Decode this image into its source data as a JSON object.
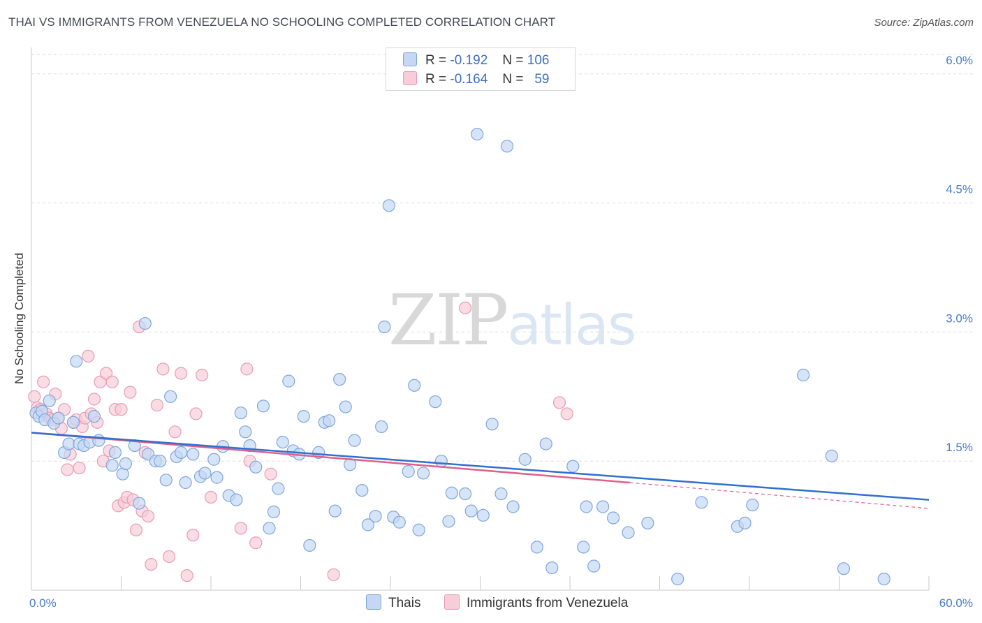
{
  "title": "THAI VS IMMIGRANTS FROM VENEZUELA NO SCHOOLING COMPLETED CORRELATION CHART",
  "source": "Source: ZipAtlas.com",
  "watermark": {
    "zip": "ZIP",
    "atlas": "atlas"
  },
  "colors": {
    "thais_fill": "#c5d8f3",
    "thais_stroke": "#7fa6dd",
    "thais_line": "#2f6fd0",
    "ven_fill": "#f7cdd9",
    "ven_stroke": "#e99bb5",
    "ven_line": "#e0608a",
    "tick_text": "#4a7cc7",
    "grid": "#dddddd"
  },
  "legend": {
    "rows": [
      {
        "r_label": "R =",
        "r_value": "-0.192",
        "n_label": "N =",
        "n_value": "106"
      },
      {
        "r_label": "R =",
        "r_value": "-0.164",
        "n_label": "N =",
        "n_value": "59"
      }
    ]
  },
  "chart_data": {
    "type": "scatter",
    "xlabel": "",
    "ylabel": "No Schooling Completed",
    "xlim": [
      0,
      60
    ],
    "ylim": [
      0,
      6.25
    ],
    "x_tick_labels": [
      {
        "value": 0,
        "label": "0.0%"
      },
      {
        "value": 60,
        "label": "60.0%"
      }
    ],
    "y_ticks": [
      {
        "value": 1.5,
        "label": "1.5%"
      },
      {
        "value": 3.0,
        "label": "3.0%"
      },
      {
        "value": 4.5,
        "label": "4.5%"
      },
      {
        "value": 6.0,
        "label": "6.0%"
      }
    ],
    "grid": "horizontal dashed",
    "legend_position": "top-center",
    "series": [
      {
        "name": "Thais",
        "trend": {
          "x": [
            0,
            60
          ],
          "y": [
            1.83,
            1.05
          ]
        },
        "points": [
          [
            0.3,
            2.06
          ],
          [
            0.5,
            2.02
          ],
          [
            0.7,
            2.08
          ],
          [
            0.9,
            1.98
          ],
          [
            1.2,
            2.2
          ],
          [
            1.5,
            1.94
          ],
          [
            1.8,
            2.0
          ],
          [
            2.2,
            1.6
          ],
          [
            2.5,
            1.7
          ],
          [
            2.8,
            1.95
          ],
          [
            3.0,
            2.66
          ],
          [
            3.2,
            1.7
          ],
          [
            3.5,
            1.68
          ],
          [
            3.9,
            1.72
          ],
          [
            4.2,
            2.02
          ],
          [
            4.5,
            1.74
          ],
          [
            5.4,
            1.45
          ],
          [
            5.6,
            1.6
          ],
          [
            6.1,
            1.35
          ],
          [
            6.3,
            1.47
          ],
          [
            6.9,
            1.68
          ],
          [
            7.2,
            1.01
          ],
          [
            7.6,
            3.1
          ],
          [
            7.8,
            1.58
          ],
          [
            8.3,
            1.5
          ],
          [
            8.6,
            1.5
          ],
          [
            9.0,
            1.28
          ],
          [
            9.3,
            2.25
          ],
          [
            9.7,
            1.55
          ],
          [
            10.0,
            1.6
          ],
          [
            10.3,
            1.25
          ],
          [
            10.8,
            1.58
          ],
          [
            11.3,
            1.32
          ],
          [
            11.6,
            1.36
          ],
          [
            12.2,
            1.52
          ],
          [
            12.4,
            1.31
          ],
          [
            12.8,
            1.67
          ],
          [
            13.2,
            1.1
          ],
          [
            13.7,
            1.05
          ],
          [
            14.0,
            2.06
          ],
          [
            14.3,
            1.84
          ],
          [
            14.6,
            1.68
          ],
          [
            15.0,
            1.43
          ],
          [
            15.5,
            2.14
          ],
          [
            15.9,
            0.72
          ],
          [
            16.2,
            0.91
          ],
          [
            16.5,
            1.18
          ],
          [
            16.8,
            1.72
          ],
          [
            17.2,
            2.43
          ],
          [
            17.5,
            1.62
          ],
          [
            17.9,
            1.58
          ],
          [
            18.2,
            2.02
          ],
          [
            18.6,
            0.52
          ],
          [
            19.2,
            1.6
          ],
          [
            19.6,
            1.95
          ],
          [
            19.9,
            1.97
          ],
          [
            20.3,
            0.92
          ],
          [
            20.6,
            2.45
          ],
          [
            21.0,
            2.13
          ],
          [
            21.3,
            1.46
          ],
          [
            21.6,
            1.74
          ],
          [
            22.1,
            1.16
          ],
          [
            22.5,
            0.76
          ],
          [
            23.0,
            0.86
          ],
          [
            23.4,
            1.9
          ],
          [
            23.6,
            3.06
          ],
          [
            23.9,
            4.47
          ],
          [
            24.2,
            0.85
          ],
          [
            24.6,
            0.79
          ],
          [
            25.2,
            1.38
          ],
          [
            25.6,
            2.38
          ],
          [
            25.9,
            0.7
          ],
          [
            26.2,
            1.36
          ],
          [
            27.0,
            2.19
          ],
          [
            27.4,
            1.5
          ],
          [
            27.9,
            0.8
          ],
          [
            28.1,
            1.13
          ],
          [
            29.0,
            1.12
          ],
          [
            29.4,
            0.92
          ],
          [
            29.8,
            5.3
          ],
          [
            30.2,
            0.87
          ],
          [
            30.8,
            1.93
          ],
          [
            31.4,
            1.12
          ],
          [
            31.8,
            5.16
          ],
          [
            32.2,
            0.97
          ],
          [
            33.0,
            1.52
          ],
          [
            33.8,
            0.5
          ],
          [
            34.4,
            1.7
          ],
          [
            34.8,
            0.26
          ],
          [
            36.2,
            1.44
          ],
          [
            36.9,
            0.5
          ],
          [
            37.1,
            0.97
          ],
          [
            37.6,
            0.28
          ],
          [
            38.2,
            0.97
          ],
          [
            38.9,
            0.84
          ],
          [
            39.9,
            0.67
          ],
          [
            41.2,
            0.78
          ],
          [
            43.2,
            0.13
          ],
          [
            44.8,
            1.02
          ],
          [
            47.2,
            0.74
          ],
          [
            47.7,
            0.78
          ],
          [
            48.2,
            0.99
          ],
          [
            51.6,
            2.5
          ],
          [
            53.5,
            1.56
          ],
          [
            54.3,
            0.25
          ],
          [
            57.0,
            0.13
          ]
        ]
      },
      {
        "name": "Immigrants from Venezuela",
        "trend": {
          "x": [
            0,
            40
          ],
          "y": [
            1.83,
            1.25
          ]
        },
        "trend_dashed_extension": {
          "x": [
            40,
            60
          ],
          "y": [
            1.25,
            0.95
          ]
        },
        "points": [
          [
            0.2,
            2.25
          ],
          [
            0.4,
            2.12
          ],
          [
            0.6,
            2.1
          ],
          [
            0.8,
            2.42
          ],
          [
            1.0,
            2.05
          ],
          [
            1.2,
            2.0
          ],
          [
            1.4,
            1.98
          ],
          [
            1.6,
            2.28
          ],
          [
            1.8,
            2.0
          ],
          [
            2.0,
            1.88
          ],
          [
            2.2,
            2.1
          ],
          [
            2.4,
            1.4
          ],
          [
            2.6,
            1.58
          ],
          [
            2.8,
            1.95
          ],
          [
            3.0,
            1.98
          ],
          [
            3.2,
            1.42
          ],
          [
            3.4,
            1.9
          ],
          [
            3.6,
            2.0
          ],
          [
            3.8,
            2.72
          ],
          [
            4.0,
            2.05
          ],
          [
            4.2,
            2.22
          ],
          [
            4.4,
            1.95
          ],
          [
            4.6,
            2.42
          ],
          [
            4.8,
            1.5
          ],
          [
            5.0,
            2.52
          ],
          [
            5.2,
            1.62
          ],
          [
            5.4,
            2.42
          ],
          [
            5.6,
            2.1
          ],
          [
            5.8,
            0.98
          ],
          [
            6.0,
            2.1
          ],
          [
            6.2,
            1.02
          ],
          [
            6.4,
            1.08
          ],
          [
            6.6,
            2.3
          ],
          [
            6.8,
            1.05
          ],
          [
            7.0,
            0.7
          ],
          [
            7.2,
            3.06
          ],
          [
            7.4,
            0.92
          ],
          [
            7.6,
            1.6
          ],
          [
            7.8,
            0.86
          ],
          [
            8.0,
            0.3
          ],
          [
            8.4,
            2.15
          ],
          [
            8.8,
            2.57
          ],
          [
            9.2,
            0.39
          ],
          [
            9.6,
            1.84
          ],
          [
            10.0,
            2.52
          ],
          [
            10.4,
            0.17
          ],
          [
            10.8,
            0.64
          ],
          [
            11.0,
            2.05
          ],
          [
            11.4,
            2.5
          ],
          [
            12.0,
            1.08
          ],
          [
            14.0,
            0.72
          ],
          [
            14.4,
            2.57
          ],
          [
            14.6,
            1.5
          ],
          [
            15.0,
            0.55
          ],
          [
            16.0,
            1.35
          ],
          [
            20.2,
            0.18
          ],
          [
            29.0,
            3.28
          ],
          [
            35.3,
            2.18
          ],
          [
            35.8,
            2.05
          ]
        ]
      }
    ]
  }
}
